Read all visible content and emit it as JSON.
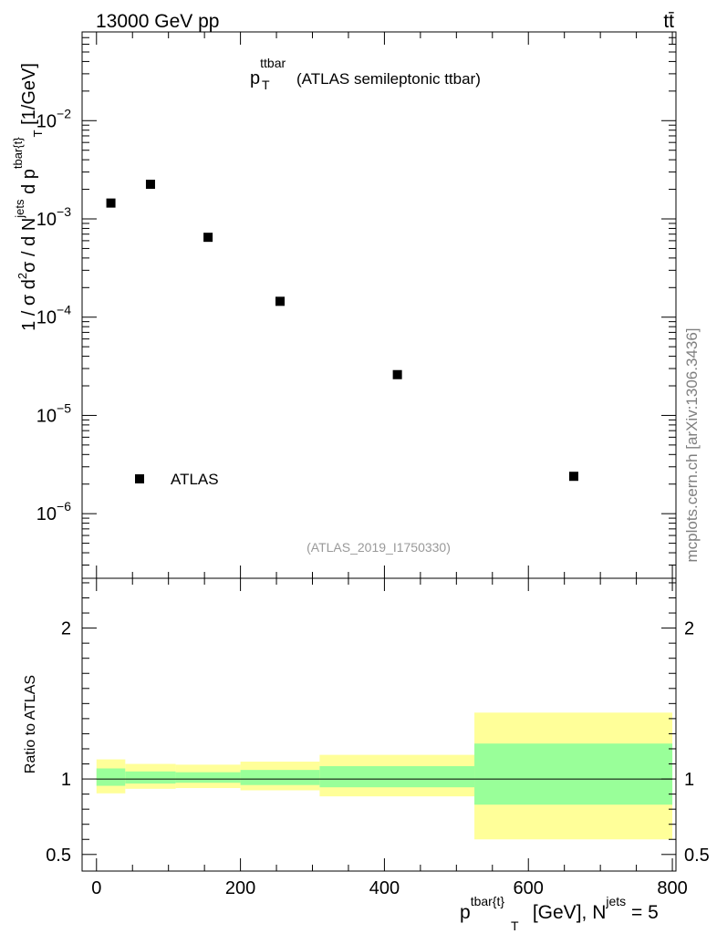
{
  "header": {
    "energy_label": "13000 GeV pp",
    "process_label": "tt̄"
  },
  "side_label": "mcplots.cern.ch [arXiv:1306.3436]",
  "chart_data": [
    {
      "type": "scatter",
      "title_main": "p",
      "title_sub": "T",
      "title_sup": "ttbar",
      "title_rest": "(ATLAS semileptonic ttbar)",
      "ylabel": "1 / σ d²σ / d N^jets d p^tbar{t}_T [1/GeV]",
      "ylabel_parts": {
        "a": "1 / σ d",
        "a_sup": "2",
        "b": "σ / d N",
        "b_sup": "jets",
        "c": " d p",
        "c_sup": "tbar{t}",
        "c_sub": "T",
        "d": " [1/GeV]"
      },
      "yscale": "log",
      "ylim": [
        2.2e-07,
        0.08
      ],
      "xlim": [
        -20,
        805
      ],
      "ytick_labels": [
        {
          "base": "10",
          "exp": "−2",
          "value": 0.01
        },
        {
          "base": "10",
          "exp": "−3",
          "value": 0.001
        },
        {
          "base": "10",
          "exp": "−4",
          "value": 0.0001
        },
        {
          "base": "10",
          "exp": "−5",
          "value": 1e-05
        },
        {
          "base": "10",
          "exp": "−6",
          "value": 1e-06
        }
      ],
      "series": [
        {
          "name": "ATLAS",
          "x": [
            20,
            75,
            155,
            255,
            418,
            663
          ],
          "y": [
            0.00145,
            0.00225,
            0.00065,
            0.000145,
            2.6e-05,
            2.4e-06
          ]
        }
      ],
      "legend": [
        {
          "label": "ATLAS",
          "location": "bottom-left"
        }
      ],
      "watermark": "(ATLAS_2019_I1750330)"
    },
    {
      "type": "area",
      "ylabel": "Ratio to ATLAS",
      "ylim": [
        0.39,
        2.33
      ],
      "xlim": [
        -20,
        805
      ],
      "ytick_labels": [
        {
          "label": "2",
          "value": 2
        },
        {
          "label": "1",
          "value": 1
        },
        {
          "label": "0.5",
          "value": 0.5
        }
      ],
      "xtick_labels": [
        {
          "label": "0",
          "value": 0
        },
        {
          "label": "200",
          "value": 200
        },
        {
          "label": "400",
          "value": 400
        },
        {
          "label": "600",
          "value": 600
        },
        {
          "label": "800",
          "value": 800
        }
      ],
      "xlabel": "p^tbar{t}_T [GeV], N^jets = 5",
      "xlabel_parts": {
        "a": "p",
        "a_sup": "tbar{t}",
        "a_sub": "T",
        "b": " [GeV], N",
        "b_sup": "jets",
        "c": " = 5"
      },
      "bins": [
        {
          "xlo": 0,
          "xhi": 40,
          "inner": [
            0.955,
            1.07
          ],
          "outer": [
            0.905,
            1.13
          ]
        },
        {
          "xlo": 40,
          "xhi": 110,
          "inner": [
            0.97,
            1.05
          ],
          "outer": [
            0.935,
            1.1
          ]
        },
        {
          "xlo": 110,
          "xhi": 200,
          "inner": [
            0.975,
            1.045
          ],
          "outer": [
            0.94,
            1.095
          ]
        },
        {
          "xlo": 200,
          "xhi": 310,
          "inner": [
            0.96,
            1.06
          ],
          "outer": [
            0.925,
            1.115
          ]
        },
        {
          "xlo": 310,
          "xhi": 525,
          "inner": [
            0.945,
            1.085
          ],
          "outer": [
            0.885,
            1.16
          ]
        },
        {
          "xlo": 525,
          "xhi": 800,
          "inner": [
            0.83,
            1.235
          ],
          "outer": [
            0.6,
            1.44
          ]
        }
      ],
      "reference_line": 1,
      "colors": {
        "inner": "#99ff99",
        "outer": "#ffff99",
        "marker": "#000000",
        "watermark": "#999999",
        "side_label": "#7f7f7f"
      }
    }
  ]
}
